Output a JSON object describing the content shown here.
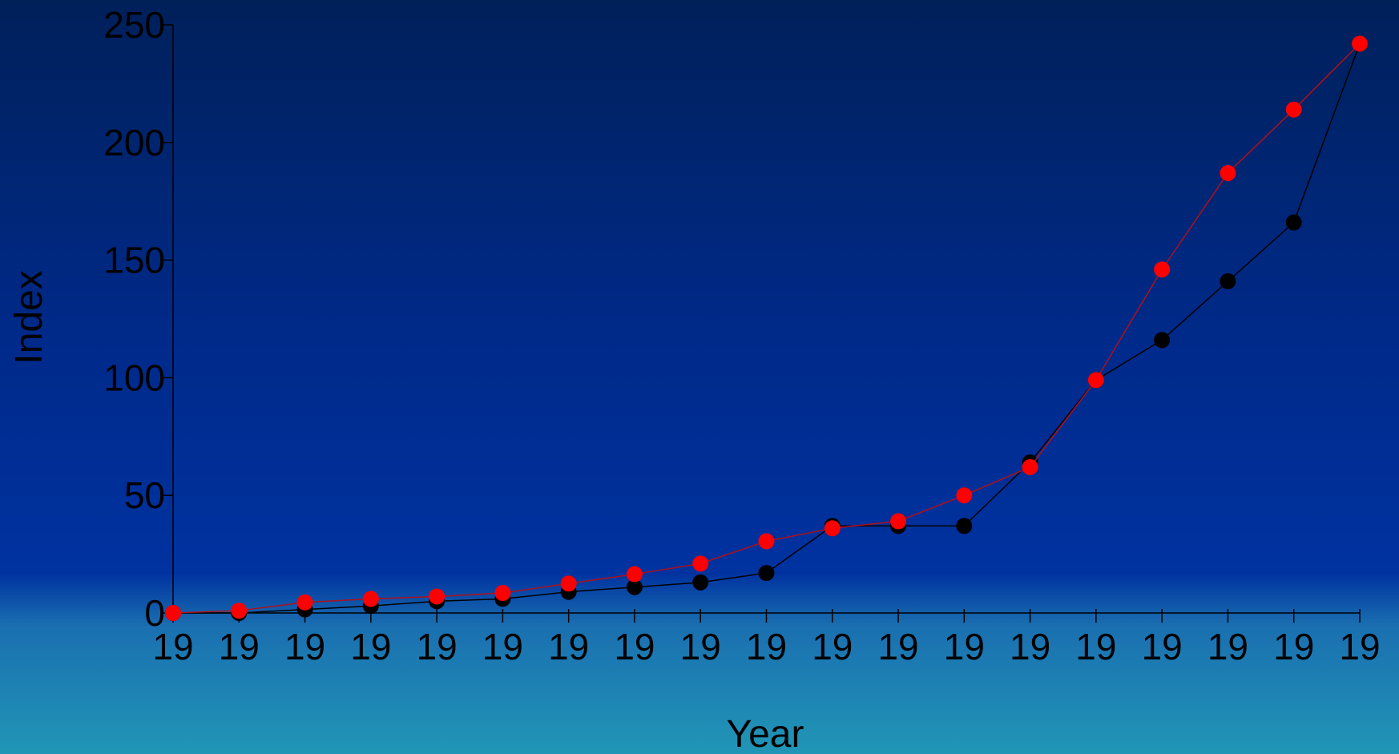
{
  "chart_data": {
    "type": "line",
    "xlabel": "Year",
    "ylabel": "Index",
    "ylim": [
      0,
      250
    ],
    "yticks": [
      0,
      50,
      100,
      150,
      200,
      250
    ],
    "x_tick_labels": [
      "19",
      "19",
      "19",
      "19",
      "19",
      "19",
      "19",
      "19",
      "19",
      "19",
      "19",
      "19",
      "19",
      "19",
      "19",
      "19",
      "19",
      "19",
      "19"
    ],
    "grid": false,
    "legend": "none",
    "series": [
      {
        "color": "#000000",
        "values": [
          0,
          0,
          1.5,
          3,
          5,
          6,
          9,
          11,
          13,
          17,
          37,
          37,
          37,
          64,
          99,
          116,
          141,
          166,
          242
        ]
      },
      {
        "color": "#ff0000",
        "line_color": "#b0101a",
        "values": [
          0,
          1,
          4.5,
          6,
          7,
          8.5,
          12.5,
          16.5,
          21,
          30.5,
          36,
          39,
          50,
          62,
          99,
          146,
          187,
          214,
          242
        ]
      }
    ]
  }
}
